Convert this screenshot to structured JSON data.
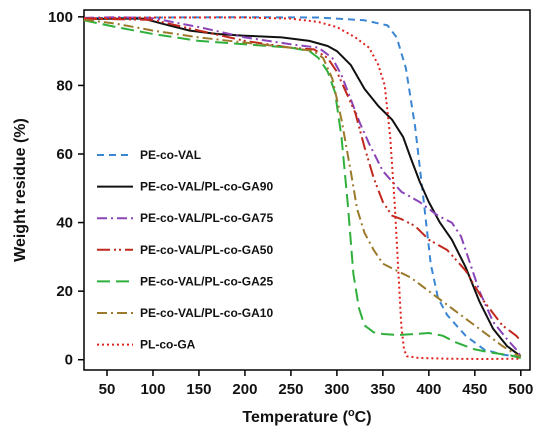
{
  "chart_data": {
    "type": "line",
    "xlabel": "Temperature (",
    "xlabel_sup": "o",
    "xlabel_unit": "C)",
    "ylabel": "Weight residue (%)",
    "xlim": [
      25,
      510
    ],
    "ylim": [
      -3,
      102
    ],
    "x_ticks": [
      "50",
      "100",
      "150",
      "200",
      "250",
      "300",
      "350",
      "400",
      "450",
      "500"
    ],
    "y_ticks": [
      "0",
      "20",
      "40",
      "60",
      "80",
      "100"
    ],
    "grid": false,
    "legend_position": "left",
    "series": [
      {
        "name": "PE-co-VAL",
        "color": "#3a86d4",
        "dash": "dashed",
        "points": [
          [
            25,
            99.6
          ],
          [
            100,
            99.8
          ],
          [
            200,
            99.9
          ],
          [
            280,
            99.8
          ],
          [
            300,
            99.5
          ],
          [
            330,
            99
          ],
          [
            355,
            97.5
          ],
          [
            365,
            94
          ],
          [
            375,
            85
          ],
          [
            385,
            68
          ],
          [
            395,
            45
          ],
          [
            402,
            28
          ],
          [
            410,
            18
          ],
          [
            420,
            13
          ],
          [
            440,
            7
          ],
          [
            460,
            3
          ],
          [
            480,
            1.5
          ],
          [
            500,
            0.8
          ]
        ]
      },
      {
        "name": "PE-co-VAL/PL-co-GA90",
        "color": "#111111",
        "dash": "solid",
        "points": [
          [
            25,
            99.4
          ],
          [
            90,
            99.5
          ],
          [
            110,
            98
          ],
          [
            140,
            96
          ],
          [
            170,
            95
          ],
          [
            200,
            94.5
          ],
          [
            240,
            94
          ],
          [
            270,
            93
          ],
          [
            290,
            91.5
          ],
          [
            300,
            90
          ],
          [
            315,
            86
          ],
          [
            330,
            79
          ],
          [
            345,
            74
          ],
          [
            360,
            70
          ],
          [
            372,
            65
          ],
          [
            380,
            59
          ],
          [
            390,
            52
          ],
          [
            400,
            46
          ],
          [
            412,
            40
          ],
          [
            425,
            35
          ],
          [
            440,
            27
          ],
          [
            455,
            17
          ],
          [
            470,
            9
          ],
          [
            485,
            4
          ],
          [
            495,
            2
          ],
          [
            500,
            1
          ]
        ]
      },
      {
        "name": "PE-co-VAL/PL-co-GA75",
        "color": "#8a44b8",
        "dash": "dashdot",
        "points": [
          [
            25,
            99.7
          ],
          [
            60,
            99.9
          ],
          [
            100,
            99.6
          ],
          [
            150,
            97
          ],
          [
            200,
            94
          ],
          [
            250,
            92
          ],
          [
            280,
            91
          ],
          [
            295,
            88
          ],
          [
            305,
            83
          ],
          [
            315,
            76
          ],
          [
            325,
            69
          ],
          [
            335,
            63
          ],
          [
            350,
            55
          ],
          [
            370,
            49
          ],
          [
            390,
            46
          ],
          [
            410,
            42
          ],
          [
            425,
            40
          ],
          [
            435,
            36
          ],
          [
            445,
            28
          ],
          [
            455,
            20
          ],
          [
            470,
            11
          ],
          [
            485,
            6
          ],
          [
            495,
            3
          ],
          [
            500,
            1
          ]
        ]
      },
      {
        "name": "PE-co-VAL/PL-co-GA50",
        "color": "#c0281e",
        "dash": "longdashdotdot",
        "points": [
          [
            25,
            99.5
          ],
          [
            100,
            99.1
          ],
          [
            150,
            96
          ],
          [
            200,
            93
          ],
          [
            250,
            91
          ],
          [
            275,
            90.5
          ],
          [
            290,
            88
          ],
          [
            300,
            84
          ],
          [
            310,
            78
          ],
          [
            320,
            72
          ],
          [
            330,
            62
          ],
          [
            340,
            53
          ],
          [
            350,
            46
          ],
          [
            360,
            42
          ],
          [
            370,
            41
          ],
          [
            385,
            39
          ],
          [
            400,
            35
          ],
          [
            420,
            32
          ],
          [
            440,
            26
          ],
          [
            460,
            17
          ],
          [
            480,
            10
          ],
          [
            495,
            7
          ],
          [
            500,
            5.5
          ]
        ]
      },
      {
        "name": "PE-co-VAL/PL-co-GA25",
        "color": "#2fb03c",
        "dash": "longdash",
        "points": [
          [
            25,
            99
          ],
          [
            60,
            97
          ],
          [
            100,
            95
          ],
          [
            150,
            93
          ],
          [
            200,
            92
          ],
          [
            250,
            91
          ],
          [
            270,
            90
          ],
          [
            280,
            88
          ],
          [
            290,
            84
          ],
          [
            298,
            78
          ],
          [
            305,
            65
          ],
          [
            312,
            45
          ],
          [
            318,
            25
          ],
          [
            324,
            15
          ],
          [
            330,
            10
          ],
          [
            340,
            8
          ],
          [
            350,
            7.5
          ],
          [
            365,
            7.2
          ],
          [
            385,
            7.5
          ],
          [
            400,
            7.8
          ],
          [
            415,
            7
          ],
          [
            430,
            5
          ],
          [
            450,
            3
          ],
          [
            470,
            2
          ],
          [
            490,
            1.2
          ],
          [
            500,
            0.5
          ]
        ]
      },
      {
        "name": "PE-co-VAL/PL-co-GA10",
        "color": "#9c7a2c",
        "dash": "dashdot",
        "points": [
          [
            25,
            99.2
          ],
          [
            60,
            98
          ],
          [
            100,
            96
          ],
          [
            150,
            94
          ],
          [
            200,
            92.5
          ],
          [
            250,
            91
          ],
          [
            275,
            90
          ],
          [
            285,
            88
          ],
          [
            295,
            82
          ],
          [
            305,
            70
          ],
          [
            315,
            55
          ],
          [
            322,
            44
          ],
          [
            330,
            37
          ],
          [
            340,
            32
          ],
          [
            350,
            28
          ],
          [
            365,
            26
          ],
          [
            380,
            24
          ],
          [
            400,
            20
          ],
          [
            420,
            16
          ],
          [
            440,
            12
          ],
          [
            460,
            8
          ],
          [
            480,
            4
          ],
          [
            495,
            1.5
          ],
          [
            500,
            1
          ]
        ]
      },
      {
        "name": "PL-co-GA",
        "color": "#e0231c",
        "dash": "dotted",
        "points": [
          [
            25,
            99.6
          ],
          [
            100,
            99.8
          ],
          [
            200,
            99.8
          ],
          [
            250,
            99.5
          ],
          [
            280,
            98.5
          ],
          [
            300,
            97
          ],
          [
            320,
            94
          ],
          [
            335,
            91
          ],
          [
            345,
            86
          ],
          [
            352,
            80
          ],
          [
            358,
            65
          ],
          [
            363,
            45
          ],
          [
            367,
            25
          ],
          [
            370,
            10
          ],
          [
            373,
            3
          ],
          [
            376,
            1
          ],
          [
            390,
            0.5
          ],
          [
            420,
            0.3
          ],
          [
            460,
            0.2
          ],
          [
            500,
            0.3
          ]
        ]
      }
    ]
  }
}
